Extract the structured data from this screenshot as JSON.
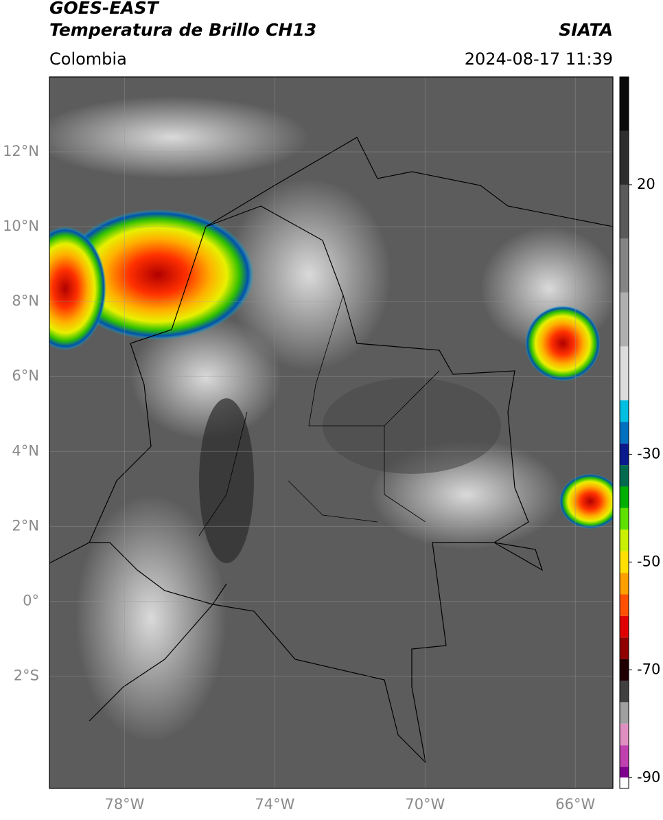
{
  "header": {
    "line1": "GOES-EAST",
    "line2": "Temperatura de Brillo CH13",
    "source": "SIATA",
    "region": "Colombia",
    "timestamp": "2024-08-17 11:39"
  },
  "map": {
    "xlim": [
      -80,
      -65
    ],
    "ylim": [
      -5,
      14
    ],
    "xticks": [
      {
        "value": -78,
        "label": "78°W"
      },
      {
        "value": -74,
        "label": "74°W"
      },
      {
        "value": -70,
        "label": "70°W"
      },
      {
        "value": -66,
        "label": "66°W"
      }
    ],
    "yticks": [
      {
        "value": 12,
        "label": "12°N"
      },
      {
        "value": 10,
        "label": "10°N"
      },
      {
        "value": 8,
        "label": "8°N"
      },
      {
        "value": 6,
        "label": "6°N"
      },
      {
        "value": 4,
        "label": "4°N"
      },
      {
        "value": 2,
        "label": "2°N"
      },
      {
        "value": 0,
        "label": "0°"
      },
      {
        "value": -2,
        "label": "2°S"
      }
    ],
    "grid": true
  },
  "colorbar": {
    "lim": [
      -92,
      40
    ],
    "ticks": [
      20,
      -30,
      -50,
      -70,
      -90
    ],
    "stops": [
      [
        40,
        "#0a0a0a"
      ],
      [
        30,
        "#2e2e2e"
      ],
      [
        20,
        "#5a5a5a"
      ],
      [
        10,
        "#858585"
      ],
      [
        0,
        "#b0b0b0"
      ],
      [
        -10,
        "#dcdcdc"
      ],
      [
        -20,
        "#00bfe0"
      ],
      [
        -24,
        "#0070c0"
      ],
      [
        -28,
        "#0a1a8c"
      ],
      [
        -32,
        "#006a50"
      ],
      [
        -36,
        "#00b000"
      ],
      [
        -40,
        "#60e000"
      ],
      [
        -44,
        "#c8f000"
      ],
      [
        -48,
        "#ffe000"
      ],
      [
        -52,
        "#ffa000"
      ],
      [
        -56,
        "#ff5000"
      ],
      [
        -60,
        "#e00000"
      ],
      [
        -64,
        "#900000"
      ],
      [
        -68,
        "#200000"
      ],
      [
        -72,
        "#404040"
      ],
      [
        -76,
        "#a0a0a0"
      ],
      [
        -80,
        "#e090c0"
      ],
      [
        -84,
        "#c040b0"
      ],
      [
        -88,
        "#800090"
      ],
      [
        -90,
        "#ffffff"
      ]
    ]
  }
}
